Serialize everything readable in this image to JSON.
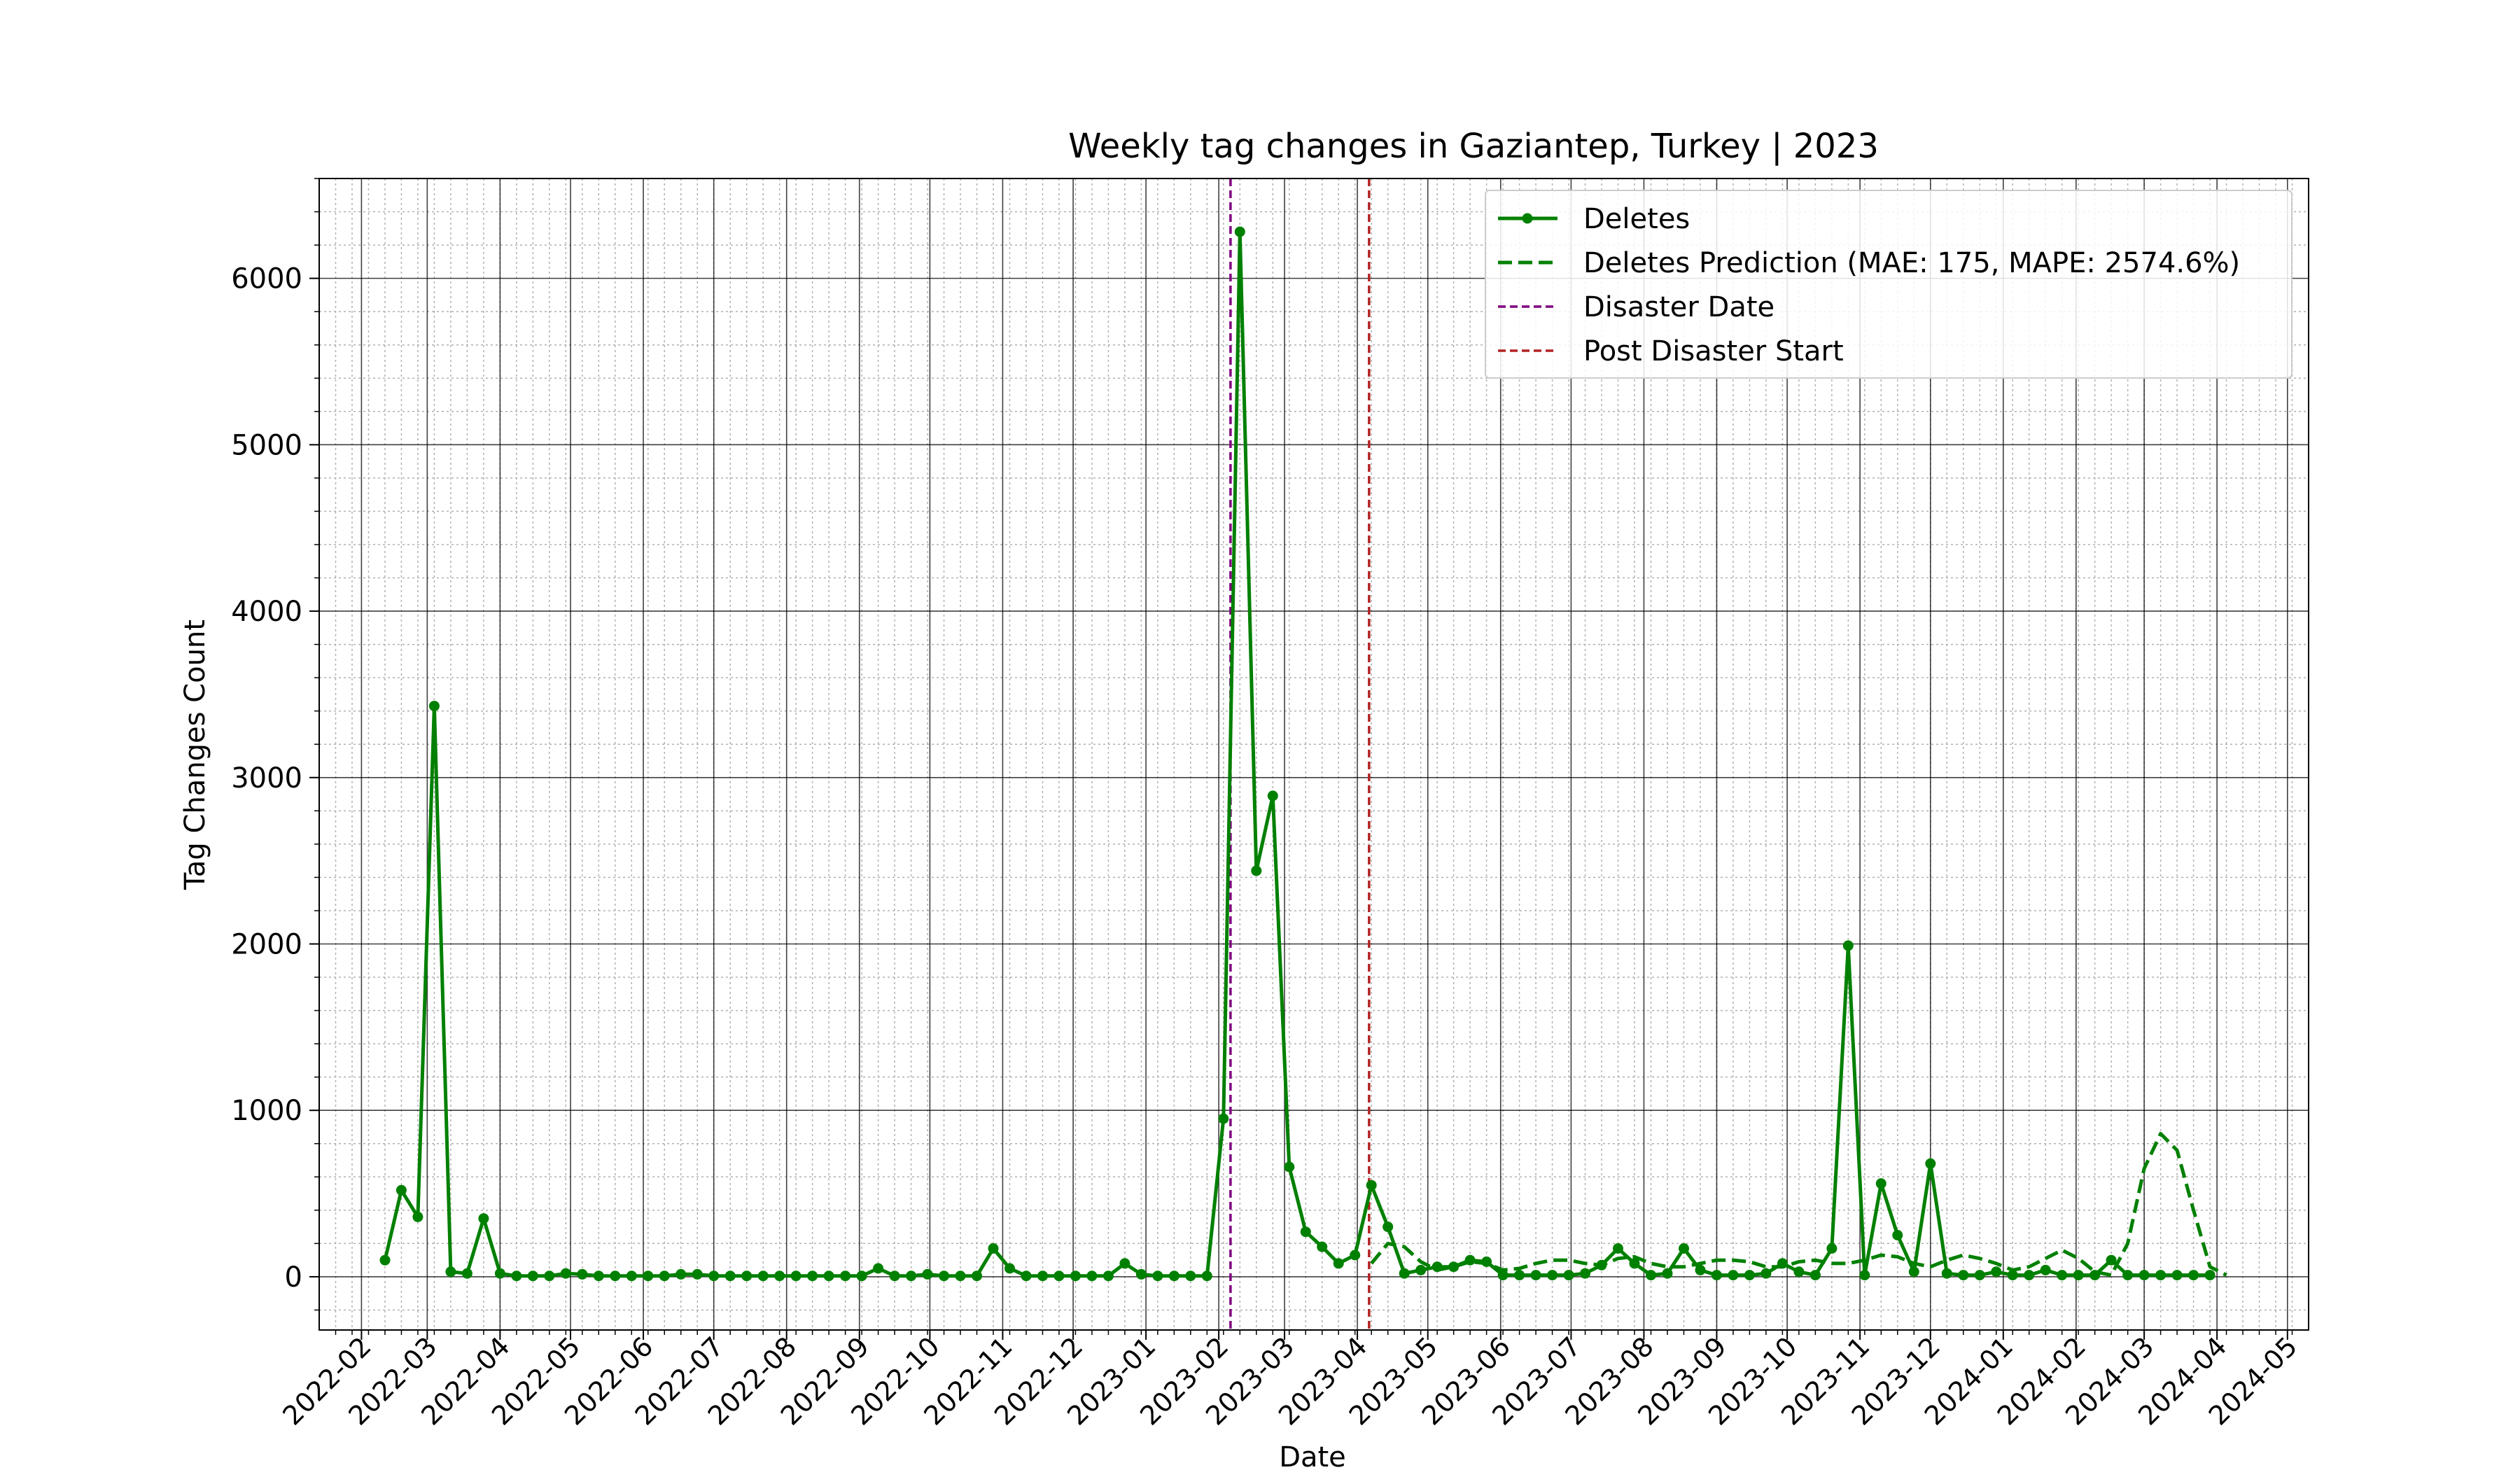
{
  "chart_data": {
    "type": "line",
    "title": "Weekly tag changes in Gaziantep, Turkey | 2023",
    "xlabel": "Date",
    "ylabel": "Tag Changes Count",
    "xlim": [
      "2022-01-14",
      "2024-05-10"
    ],
    "ylim": [
      -320,
      6600
    ],
    "x_ticks": [
      "2022-02",
      "2022-03",
      "2022-04",
      "2022-05",
      "2022-06",
      "2022-07",
      "2022-08",
      "2022-09",
      "2022-10",
      "2022-11",
      "2022-12",
      "2023-01",
      "2023-02",
      "2023-03",
      "2023-04",
      "2023-05",
      "2023-06",
      "2023-07",
      "2023-08",
      "2023-09",
      "2023-10",
      "2023-11",
      "2023-12",
      "2024-01",
      "2024-02",
      "2024-03",
      "2024-04",
      "2024-05"
    ],
    "y_ticks": [
      0,
      1000,
      2000,
      3000,
      4000,
      5000,
      6000
    ],
    "grid": true,
    "legend_position": "top-right",
    "series": [
      {
        "name": "Deletes",
        "style": "solid-with-markers",
        "color": "#008000",
        "x": [
          "2022-02-11",
          "2022-02-18",
          "2022-02-25",
          "2022-03-04",
          "2022-03-11",
          "2022-03-18",
          "2022-03-25",
          "2022-04-01",
          "2022-04-08",
          "2022-04-15",
          "2022-04-22",
          "2022-04-29",
          "2022-05-06",
          "2022-05-13",
          "2022-05-20",
          "2022-05-27",
          "2022-06-03",
          "2022-06-10",
          "2022-06-17",
          "2022-06-24",
          "2022-07-01",
          "2022-07-08",
          "2022-07-15",
          "2022-07-22",
          "2022-07-29",
          "2022-08-05",
          "2022-08-12",
          "2022-08-19",
          "2022-08-26",
          "2022-09-02",
          "2022-09-09",
          "2022-09-16",
          "2022-09-23",
          "2022-09-30",
          "2022-10-07",
          "2022-10-14",
          "2022-10-21",
          "2022-10-28",
          "2022-11-04",
          "2022-11-11",
          "2022-11-18",
          "2022-11-25",
          "2022-12-02",
          "2022-12-09",
          "2022-12-16",
          "2022-12-23",
          "2022-12-30",
          "2023-01-06",
          "2023-01-13",
          "2023-01-20",
          "2023-01-27",
          "2023-02-03",
          "2023-02-10",
          "2023-02-17",
          "2023-02-24",
          "2023-03-03",
          "2023-03-10",
          "2023-03-17",
          "2023-03-24",
          "2023-03-31",
          "2023-04-07",
          "2023-04-14",
          "2023-04-21",
          "2023-04-28",
          "2023-05-05",
          "2023-05-12",
          "2023-05-19",
          "2023-05-26",
          "2023-06-02",
          "2023-06-09",
          "2023-06-16",
          "2023-06-23",
          "2023-06-30",
          "2023-07-07",
          "2023-07-14",
          "2023-07-21",
          "2023-07-28",
          "2023-08-04",
          "2023-08-11",
          "2023-08-18",
          "2023-08-25",
          "2023-09-01",
          "2023-09-08",
          "2023-09-15",
          "2023-09-22",
          "2023-09-29",
          "2023-10-06",
          "2023-10-13",
          "2023-10-20",
          "2023-10-27",
          "2023-11-03",
          "2023-11-10",
          "2023-11-17",
          "2023-11-24",
          "2023-12-01",
          "2023-12-08",
          "2023-12-15",
          "2023-12-22",
          "2023-12-29",
          "2024-01-05",
          "2024-01-12",
          "2024-01-19",
          "2024-01-26",
          "2024-02-02",
          "2024-02-09",
          "2024-02-16",
          "2024-02-23",
          "2024-03-01",
          "2024-03-08",
          "2024-03-15",
          "2024-03-22",
          "2024-03-29"
        ],
        "y": [
          100,
          520,
          360,
          3430,
          30,
          20,
          350,
          20,
          5,
          5,
          5,
          20,
          15,
          5,
          5,
          5,
          5,
          5,
          15,
          15,
          5,
          5,
          5,
          5,
          5,
          5,
          5,
          5,
          5,
          5,
          50,
          5,
          5,
          15,
          5,
          5,
          5,
          170,
          50,
          5,
          5,
          5,
          5,
          5,
          5,
          80,
          15,
          5,
          5,
          5,
          5,
          950,
          6280,
          2440,
          2890,
          660,
          270,
          180,
          80,
          130,
          550,
          300,
          20,
          40,
          60,
          60,
          100,
          90,
          10,
          10,
          10,
          10,
          10,
          20,
          70,
          170,
          80,
          10,
          20,
          170,
          40,
          10,
          10,
          10,
          20,
          80,
          30,
          10,
          170,
          1990,
          10,
          560,
          250,
          30,
          680,
          20,
          10,
          10,
          30,
          10,
          10,
          40,
          10,
          10,
          10,
          100,
          10,
          10,
          10,
          10,
          10,
          10
        ]
      },
      {
        "name": "Deletes Prediction (MAE: 175, MAPE: 2574.6%)",
        "style": "dashed",
        "color": "#008000",
        "x": [
          "2023-04-07",
          "2023-04-14",
          "2023-04-21",
          "2023-04-28",
          "2023-05-05",
          "2023-05-12",
          "2023-05-19",
          "2023-05-26",
          "2023-06-02",
          "2023-06-09",
          "2023-06-16",
          "2023-06-23",
          "2023-06-30",
          "2023-07-07",
          "2023-07-14",
          "2023-07-21",
          "2023-07-28",
          "2023-08-04",
          "2023-08-11",
          "2023-08-18",
          "2023-08-25",
          "2023-09-01",
          "2023-09-08",
          "2023-09-15",
          "2023-09-22",
          "2023-09-29",
          "2023-10-06",
          "2023-10-13",
          "2023-10-20",
          "2023-10-27",
          "2023-11-03",
          "2023-11-10",
          "2023-11-17",
          "2023-11-24",
          "2023-12-01",
          "2023-12-08",
          "2023-12-15",
          "2023-12-22",
          "2023-12-29",
          "2024-01-05",
          "2024-01-12",
          "2024-01-19",
          "2024-01-26",
          "2024-02-02",
          "2024-02-09",
          "2024-02-16",
          "2024-02-23",
          "2024-03-01",
          "2024-03-08",
          "2024-03-15",
          "2024-03-22",
          "2024-03-29",
          "2024-04-05"
        ],
        "y": [
          80,
          200,
          180,
          90,
          40,
          60,
          90,
          80,
          40,
          50,
          80,
          100,
          100,
          80,
          70,
          110,
          120,
          80,
          60,
          60,
          80,
          100,
          100,
          90,
          60,
          60,
          90,
          100,
          80,
          80,
          100,
          130,
          120,
          80,
          60,
          100,
          130,
          110,
          80,
          40,
          60,
          110,
          160,
          110,
          30,
          10,
          200,
          650,
          860,
          760,
          400,
          60,
          10
        ]
      }
    ],
    "reference_lines": [
      {
        "name": "Disaster Date",
        "x": "2023-02-06",
        "color": "#800080",
        "style": "dashed"
      },
      {
        "name": "Post Disaster Start",
        "x": "2023-04-06",
        "color": "#b22222",
        "style": "dashed"
      }
    ]
  }
}
